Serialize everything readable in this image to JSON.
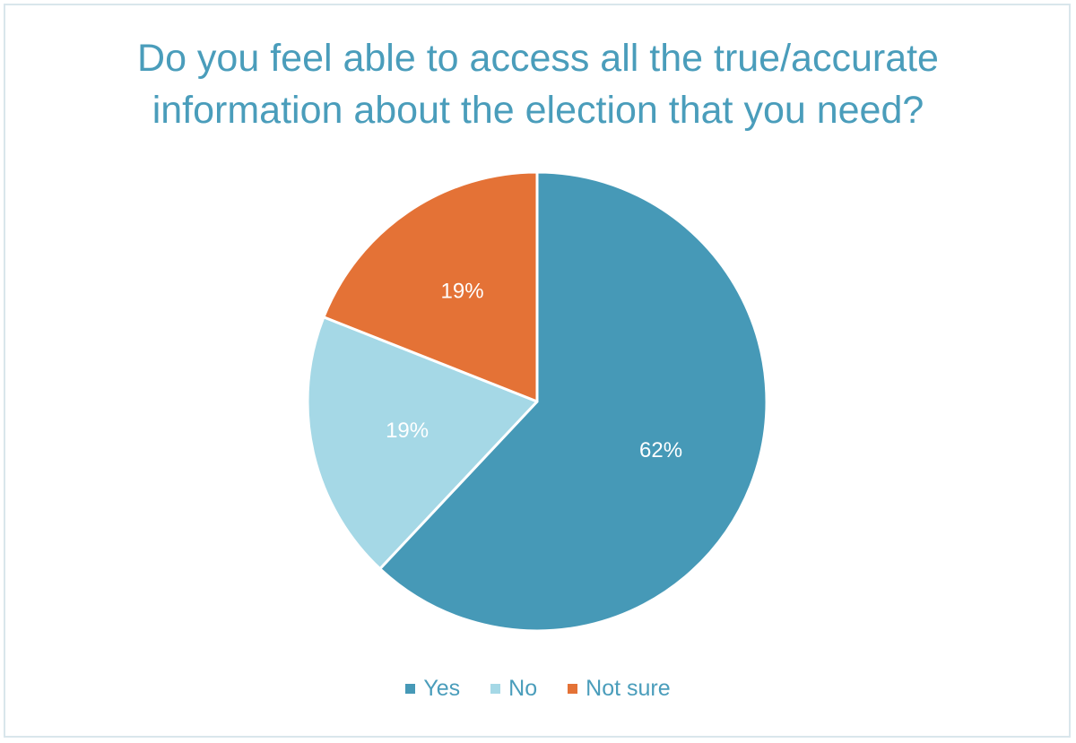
{
  "chart_data": {
    "type": "pie",
    "title_lines": [
      "Do you feel able to access all the true/accurate",
      "information about the election that you need?"
    ],
    "categories": [
      "Yes",
      "No",
      "Not sure"
    ],
    "values": [
      62,
      19,
      19
    ],
    "data_labels": [
      "62%",
      "19%",
      "19%"
    ],
    "colors": [
      "#4699b7",
      "#a5d8e6",
      "#e47236"
    ],
    "legend_position": "bottom",
    "start": "top, clockwise"
  }
}
